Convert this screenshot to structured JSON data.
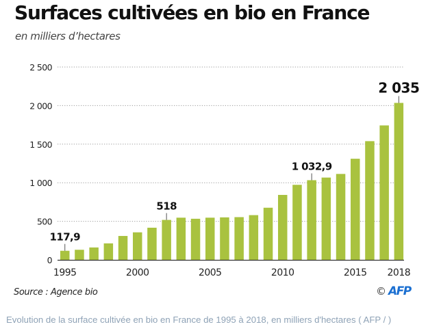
{
  "header": {
    "title": "Surfaces cultivées en bio en France",
    "subtitle": "en milliers d’hectares"
  },
  "footer": {
    "source": "Source : Agence bio",
    "copyright_symbol": "©",
    "credit": "AFP",
    "caption": "Evolution de la surface cultivée en bio en France de 1995 à 2018, en milliers d'hectares ( AFP / )"
  },
  "colors": {
    "bar": "#a9c23f",
    "grid": "#9a9a9a",
    "axis": "#333333",
    "afp": "#1b6fd1",
    "caption": "#8ea2b6"
  },
  "chart_data": {
    "type": "bar",
    "title": "Surfaces cultivées en bio en France",
    "subtitle": "en milliers d’hectares",
    "xlabel": "",
    "ylabel": "",
    "categories": [
      "1995",
      "1996",
      "1997",
      "1998",
      "1999",
      "2000",
      "2001",
      "2002",
      "2003",
      "2004",
      "2005",
      "2006",
      "2007",
      "2008",
      "2009",
      "2010",
      "2011",
      "2012",
      "2013",
      "2014",
      "2015",
      "2016",
      "2017",
      "2018"
    ],
    "values": [
      117.9,
      131,
      161,
      214,
      310,
      357,
      417,
      518,
      547,
      533,
      547,
      551,
      554,
      580,
      676,
      842,
      973,
      1032.9,
      1067,
      1114,
      1311,
      1539,
      1743,
      2035
    ],
    "ylim": [
      0,
      2500
    ],
    "yticks": [
      0,
      500,
      1000,
      1500,
      2000,
      2500
    ],
    "ytick_labels": [
      "0",
      "500",
      "1 000",
      "1 500",
      "2 000",
      "2 500"
    ],
    "xtick_labels": [
      {
        "category": "1995",
        "label": "1995"
      },
      {
        "category": "2000",
        "label": "2000"
      },
      {
        "category": "2005",
        "label": "2005"
      },
      {
        "category": "2010",
        "label": "2010"
      },
      {
        "category": "2015",
        "label": "2015"
      },
      {
        "category": "2018",
        "label": "2018"
      }
    ],
    "grid": true,
    "annotations": [
      {
        "category": "1995",
        "label": "117,9",
        "bold": false
      },
      {
        "category": "2002",
        "label": "518",
        "bold": false
      },
      {
        "category": "2012",
        "label": "1 032,9",
        "bold": false
      },
      {
        "category": "2018",
        "label": "2 035",
        "bold": true
      }
    ]
  }
}
